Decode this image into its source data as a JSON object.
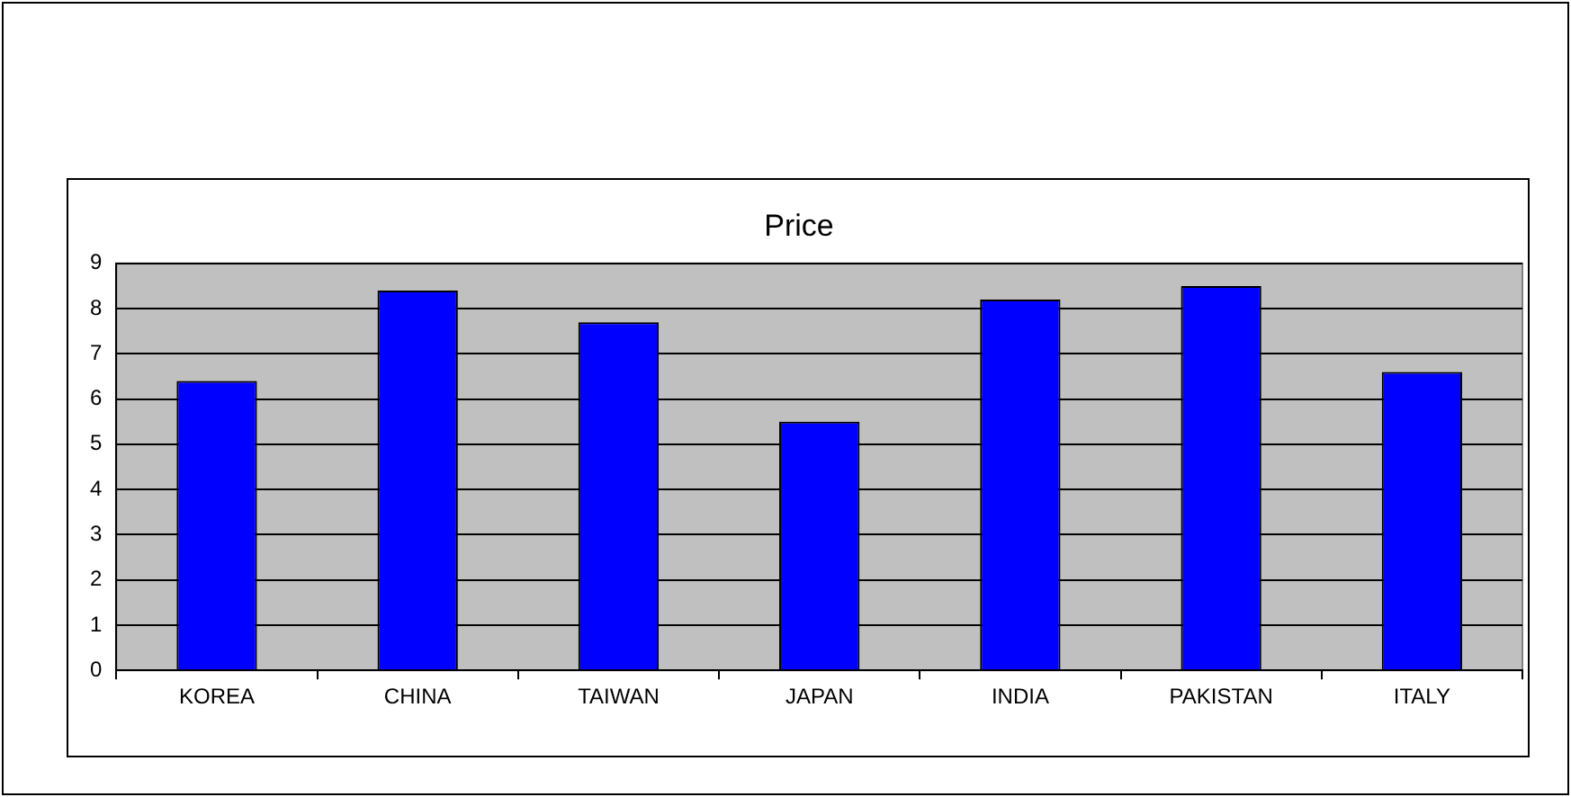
{
  "chart_data": {
    "type": "bar",
    "title": "Price",
    "categories": [
      "KOREA",
      "CHINA",
      "TAIWAN",
      "JAPAN",
      "INDIA",
      "PAKISTAN",
      "ITALY"
    ],
    "values": [
      6.4,
      8.4,
      7.7,
      5.5,
      8.2,
      8.5,
      6.6
    ],
    "color": "#0000ff",
    "ylim": [
      0,
      9
    ],
    "yticks": [
      0,
      1,
      2,
      3,
      4,
      5,
      6,
      7,
      8,
      9
    ],
    "grid": "y",
    "legend": false
  }
}
